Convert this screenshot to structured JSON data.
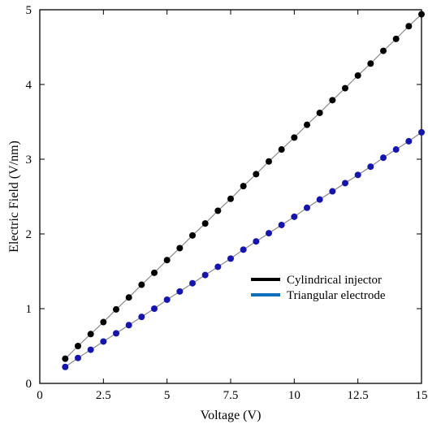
{
  "chart_data": {
    "type": "scatter",
    "xlabel": "Voltage (V)",
    "ylabel": "Electric Field (V/nm)",
    "xlim": [
      0,
      15
    ],
    "ylim": [
      0,
      5
    ],
    "xticks": [
      "0",
      "2.5",
      "5",
      "7.5",
      "10",
      "12.5",
      "15"
    ],
    "yticks": [
      "0",
      "1",
      "2",
      "3",
      "4",
      "5"
    ],
    "grid": false,
    "legend_position": "center-right",
    "series": [
      {
        "name": "Cylindrical  injector",
        "color": "#000000",
        "marker_color": "#000000",
        "x": [
          1,
          1.5,
          2,
          2.5,
          3,
          3.5,
          4,
          4.5,
          5,
          5.5,
          6,
          6.5,
          7,
          7.5,
          8,
          8.5,
          9,
          9.5,
          10,
          10.5,
          11,
          11.5,
          12,
          12.5,
          13,
          13.5,
          14,
          14.5,
          15
        ],
        "y": [
          0.33,
          0.5,
          0.66,
          0.82,
          0.99,
          1.15,
          1.32,
          1.48,
          1.65,
          1.81,
          1.98,
          2.14,
          2.31,
          2.47,
          2.64,
          2.8,
          2.97,
          3.13,
          3.29,
          3.46,
          3.62,
          3.79,
          3.95,
          4.12,
          4.28,
          4.45,
          4.61,
          4.78,
          4.94
        ]
      },
      {
        "name": "Triangular  electrode",
        "color": "#0f6fbf",
        "marker_color": "#1414b4",
        "x": [
          1,
          1.5,
          2,
          2.5,
          3,
          3.5,
          4,
          4.5,
          5,
          5.5,
          6,
          6.5,
          7,
          7.5,
          8,
          8.5,
          9,
          9.5,
          10,
          10.5,
          11,
          11.5,
          12,
          12.5,
          13,
          13.5,
          14,
          14.5,
          15
        ],
        "y": [
          0.22,
          0.34,
          0.45,
          0.56,
          0.67,
          0.78,
          0.89,
          1.0,
          1.12,
          1.23,
          1.34,
          1.45,
          1.56,
          1.67,
          1.79,
          1.9,
          2.01,
          2.12,
          2.23,
          2.35,
          2.46,
          2.57,
          2.68,
          2.79,
          2.9,
          3.02,
          3.13,
          3.24,
          3.36
        ]
      }
    ]
  }
}
